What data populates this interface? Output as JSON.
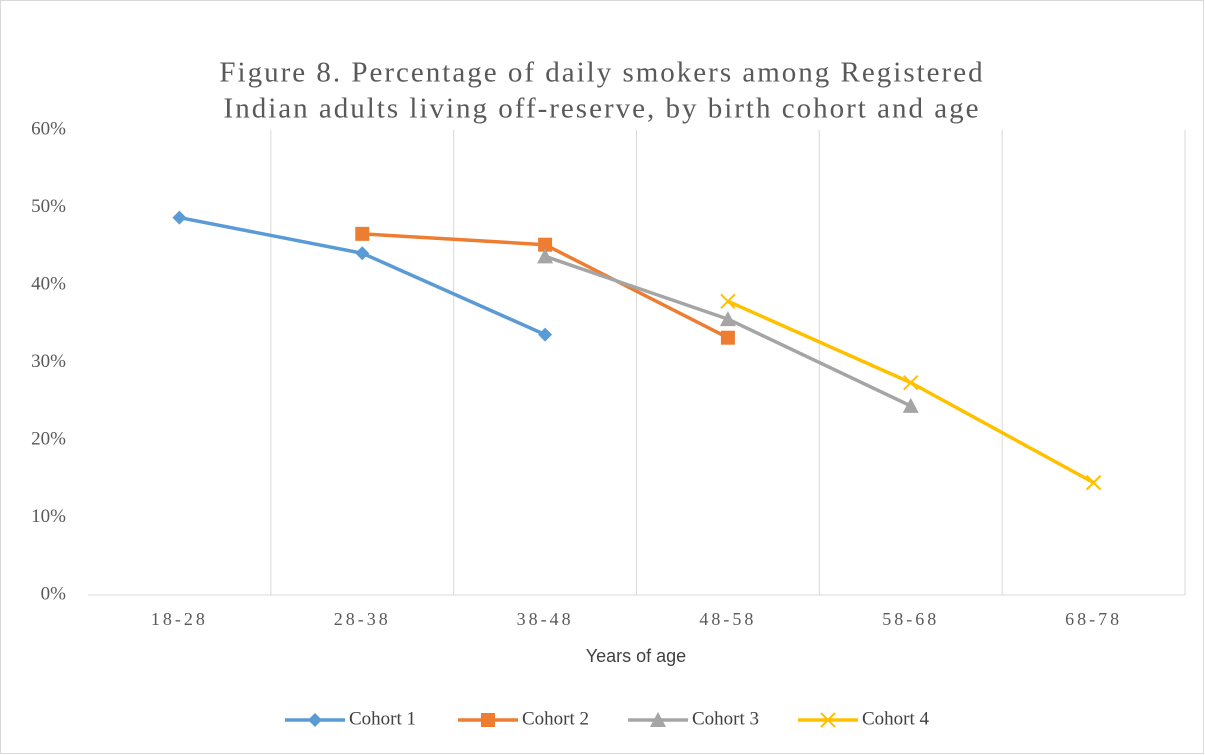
{
  "chart_data": {
    "type": "line",
    "title": [
      "Figure 8. Percentage of daily smokers among Registered",
      "Indian adults living off-reserve, by birth cohort and age"
    ],
    "x_label": "Years of age",
    "categories": [
      "18-28",
      "28-38",
      "38-48",
      "48-58",
      "58-68",
      "68-78"
    ],
    "series": [
      {
        "name": "Cohort 1",
        "color": "#5b9bd5",
        "marker": "diamond",
        "values": [
          48.7,
          44.1,
          33.6,
          null,
          null,
          null
        ]
      },
      {
        "name": "Cohort 2",
        "color": "#ed7d31",
        "marker": "square",
        "values": [
          null,
          46.6,
          45.2,
          33.2,
          null,
          null
        ]
      },
      {
        "name": "Cohort 3",
        "color": "#a5a5a5",
        "marker": "triangle",
        "values": [
          null,
          null,
          43.7,
          35.6,
          24.4,
          null
        ]
      },
      {
        "name": "Cohort 4",
        "color": "#ffc000",
        "marker": "x",
        "values": [
          null,
          null,
          null,
          37.9,
          27.4,
          14.5
        ]
      }
    ],
    "ylim": [
      0,
      60
    ],
    "yticks": [
      {
        "value": 0,
        "label": "0%"
      },
      {
        "value": 10,
        "label": "10%"
      },
      {
        "value": 20,
        "label": "20%"
      },
      {
        "value": 30,
        "label": "30%"
      },
      {
        "value": 40,
        "label": "40%"
      },
      {
        "value": 50,
        "label": "50%"
      },
      {
        "value": 60,
        "label": "60%"
      }
    ],
    "grid": "x",
    "legend": "bottom"
  }
}
